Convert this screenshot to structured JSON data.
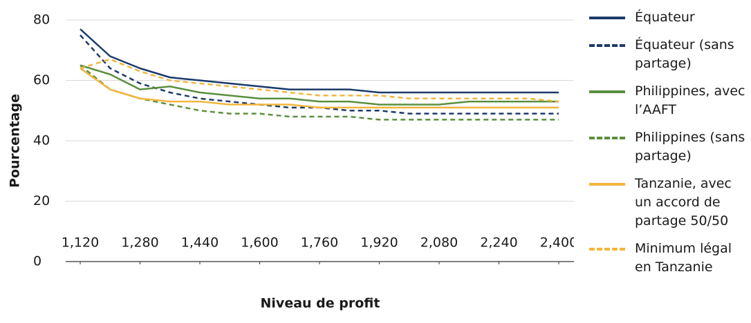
{
  "chart_data": {
    "type": "line",
    "x_label": "Niveau de profit",
    "y_label": "Pourcentage",
    "x": [
      1120,
      1200,
      1280,
      1360,
      1440,
      1520,
      1600,
      1680,
      1760,
      1840,
      1920,
      2000,
      2080,
      2160,
      2240,
      2320,
      2400
    ],
    "xlim": [
      1120,
      2400
    ],
    "xticks": [
      {
        "value": 1120,
        "label": "1,120"
      },
      {
        "value": 1280,
        "label": "1,280"
      },
      {
        "value": 1440,
        "label": "1,440"
      },
      {
        "value": 1600,
        "label": "1,600"
      },
      {
        "value": 1760,
        "label": "1,760"
      },
      {
        "value": 1920,
        "label": "1,920"
      },
      {
        "value": 2080,
        "label": "2,080"
      },
      {
        "value": 2240,
        "label": "2,240"
      },
      {
        "value": 2400,
        "label": "2,400"
      }
    ],
    "ylim": [
      0,
      80
    ],
    "yticks": [
      0,
      20,
      40,
      60,
      80
    ],
    "grid": true,
    "legend": "right",
    "series": [
      {
        "name": "Équateur",
        "color": "#1b3a6b",
        "dashed": false,
        "values": [
          77,
          68,
          64,
          61,
          60,
          59,
          58,
          57,
          57,
          57,
          56,
          56,
          56,
          56,
          56,
          56,
          56
        ]
      },
      {
        "name": "Équateur (sans partage)",
        "color": "#1b3a6b",
        "dashed": true,
        "values": [
          75,
          64,
          59,
          56,
          54,
          53,
          52,
          51,
          51,
          50,
          50,
          49,
          49,
          49,
          49,
          49,
          49
        ]
      },
      {
        "name": "Philippines, avec l’AAFT",
        "color": "#5a8f3c",
        "dashed": false,
        "values": [
          65,
          62,
          57,
          58,
          56,
          55,
          54,
          54,
          53,
          53,
          52,
          52,
          52,
          53,
          53,
          53,
          53
        ]
      },
      {
        "name": "Philippines (sans partage)",
        "color": "#5a8f3c",
        "dashed": true,
        "values": [
          65,
          57,
          54,
          52,
          50,
          49,
          49,
          48,
          48,
          48,
          47,
          47,
          47,
          47,
          47,
          47,
          47
        ]
      },
      {
        "name": "Tanzanie, avec un accord de partage 50/50",
        "color": "#f2b53c",
        "dashed": false,
        "values": [
          64,
          57,
          54,
          53,
          53,
          52,
          52,
          52,
          51,
          51,
          51,
          51,
          51,
          51,
          51,
          51,
          51
        ]
      },
      {
        "name": "Minimum légal en Tanzanie",
        "color": "#f2b53c",
        "dashed": true,
        "values": [
          64,
          67,
          63,
          60,
          59,
          58,
          57,
          56,
          55,
          55,
          55,
          54,
          54,
          54,
          54,
          54,
          53
        ]
      }
    ]
  }
}
